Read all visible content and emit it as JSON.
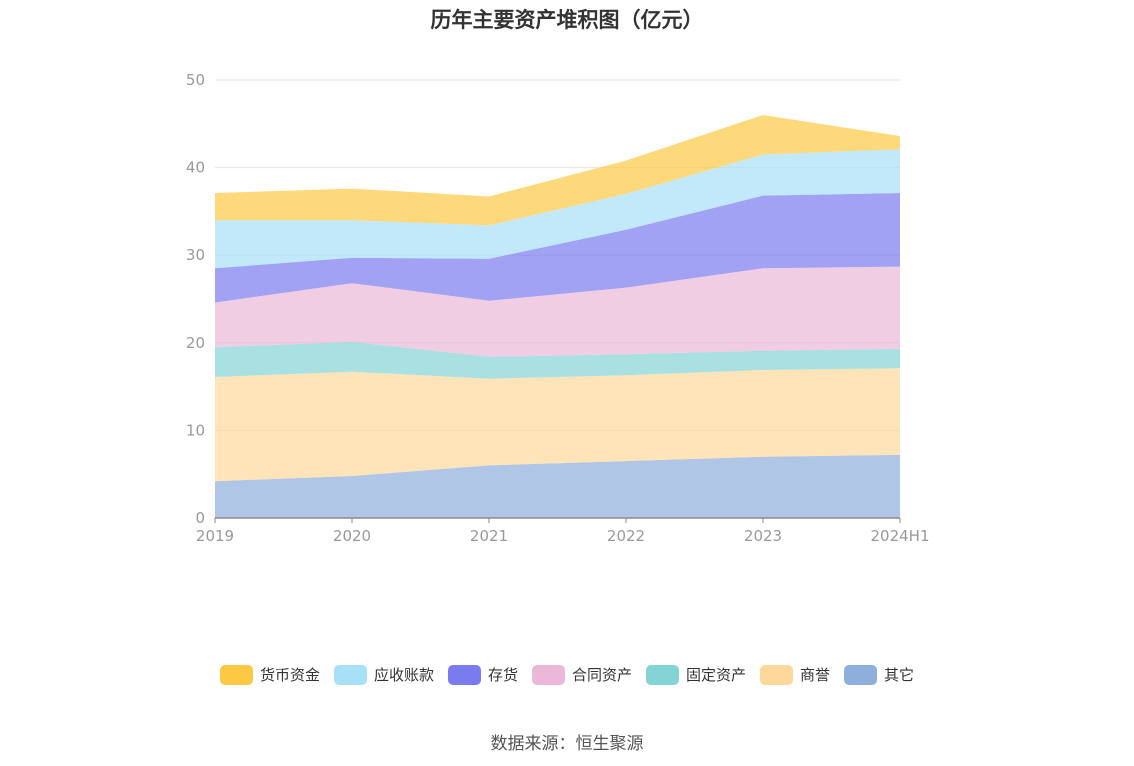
{
  "chart_data": {
    "type": "area",
    "stacked": true,
    "title": "历年主要资产堆积图（亿元）",
    "xlabel": "",
    "ylabel": "",
    "ylim": [
      0,
      50
    ],
    "yticks": [
      0,
      10,
      20,
      30,
      40,
      50
    ],
    "x": [
      "2019",
      "2020",
      "2021",
      "2022",
      "2023",
      "2024H1"
    ],
    "grid": true,
    "legend_position": "bottom",
    "series": [
      {
        "name": "其它",
        "color": "#8eaedc",
        "values": [
          4.2,
          4.8,
          6.0,
          6.5,
          7.0,
          7.2
        ]
      },
      {
        "name": "商誉",
        "color": "#fdd89a",
        "values": [
          11.9,
          11.9,
          9.9,
          9.8,
          9.9,
          9.9
        ]
      },
      {
        "name": "固定资产",
        "color": "#84d4d6",
        "values": [
          3.4,
          3.4,
          2.5,
          2.4,
          2.2,
          2.2
        ]
      },
      {
        "name": "合同资产",
        "color": "#ebb8d8",
        "values": [
          5.1,
          6.7,
          6.4,
          7.6,
          9.4,
          9.4
        ]
      },
      {
        "name": "存货",
        "color": "#7b7bf0",
        "values": [
          3.9,
          2.9,
          4.8,
          6.6,
          8.3,
          8.4
        ]
      },
      {
        "name": "应收账款",
        "color": "#a8e0f8",
        "values": [
          5.5,
          4.3,
          3.8,
          4.1,
          4.7,
          5.0
        ]
      },
      {
        "name": "货币资金",
        "color": "#fdc944",
        "values": [
          3.1,
          3.6,
          3.3,
          3.8,
          4.5,
          1.5
        ]
      }
    ]
  },
  "legend_order": [
    "货币资金",
    "应收账款",
    "存货",
    "合同资产",
    "固定资产",
    "商誉",
    "其它"
  ],
  "source_note": "数据来源：恒生聚源"
}
